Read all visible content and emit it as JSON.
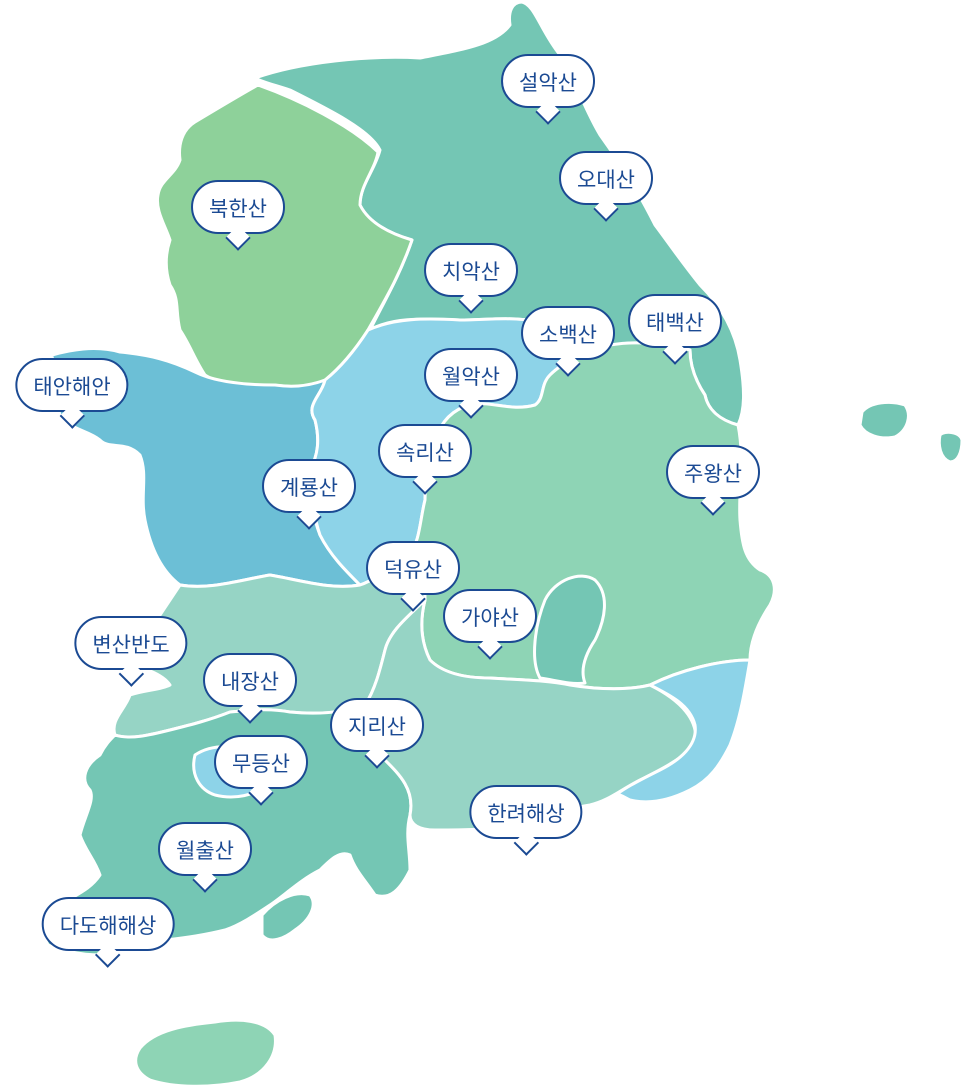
{
  "map": {
    "colors": {
      "gangwon": "#74c6b4",
      "gyeonggi": "#8ed19a",
      "chungnam": "#6cbfd6",
      "chungbuk": "#8dd3e8",
      "gyeongbuk": "#8ed4b5",
      "jeonbuk": "#96d4c5",
      "jeonnam": "#74c6b4",
      "gyeongnam": "#96d4c5",
      "busan": "#8dd3e8",
      "jeju": "#8ed4b5",
      "border": "#ffffff",
      "label_text": "#1b4a93",
      "label_border": "#1b4a93"
    },
    "markers": [
      {
        "id": "seoraksan",
        "label": "설악산"
      },
      {
        "id": "odaesan",
        "label": "오대산"
      },
      {
        "id": "bukhansan",
        "label": "북한산"
      },
      {
        "id": "chiaksan",
        "label": "치악산"
      },
      {
        "id": "sobaeksan",
        "label": "소백산"
      },
      {
        "id": "taebaeksan",
        "label": "태백산"
      },
      {
        "id": "taean",
        "label": "태안해안"
      },
      {
        "id": "woraksan",
        "label": "월악산"
      },
      {
        "id": "songnisan",
        "label": "속리산"
      },
      {
        "id": "juwangsan",
        "label": "주왕산"
      },
      {
        "id": "gyeryongsan",
        "label": "계룡산"
      },
      {
        "id": "deogyusan",
        "label": "덕유산"
      },
      {
        "id": "gayasan",
        "label": "가야산"
      },
      {
        "id": "byeonsanbando",
        "label": "변산반도"
      },
      {
        "id": "naejangsan",
        "label": "내장산"
      },
      {
        "id": "jirisan",
        "label": "지리산"
      },
      {
        "id": "mudeungsan",
        "label": "무등산"
      },
      {
        "id": "hallyeohaesang",
        "label": "한려해상"
      },
      {
        "id": "wolchulsan",
        "label": "월출산"
      },
      {
        "id": "dadohaehaesang",
        "label": "다도해해상"
      }
    ]
  }
}
